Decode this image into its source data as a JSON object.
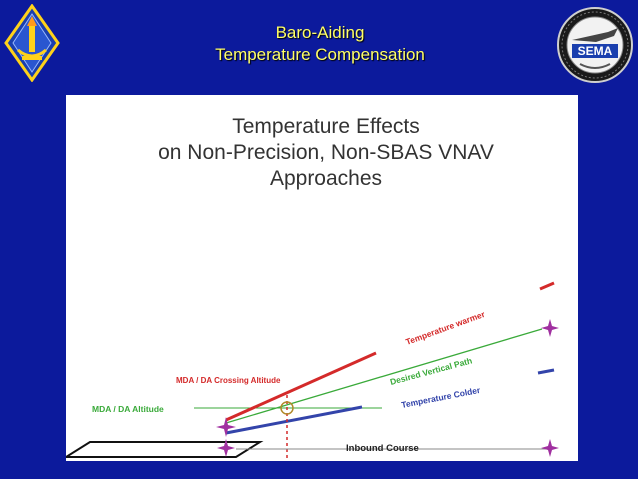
{
  "slide": {
    "title_line1": "Baro-Aiding",
    "title_line2": "Temperature Compensation"
  },
  "logo_right": {
    "text": "SEMA"
  },
  "diagram": {
    "heading": [
      "Temperature Effects",
      "on Non-Precision, Non-SBAS VNAV",
      "Approaches"
    ],
    "labels": {
      "mda_da_crossing_altitude": "MDA / DA Crossing Altitude",
      "mda_da_altitude": "MDA / DA Altitude",
      "temperature_warmer": "Temperature warmer",
      "desired_vertical_path": "Desired Vertical Path",
      "temperature_colder": "Temperature Colder",
      "inbound_course": "Inbound Course"
    },
    "colors": {
      "warmer": "#d42a2a",
      "desired": "#3aaa3a",
      "colder": "#3344aa",
      "star": "#a030a0",
      "crossing_marker": "#b08a2a",
      "crossing_line": "#d42a2a"
    }
  }
}
